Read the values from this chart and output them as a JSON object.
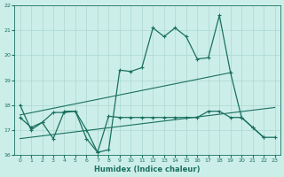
{
  "xlabel": "Humidex (Indice chaleur)",
  "bg_color": "#cceee8",
  "grid_color": "#aad8d0",
  "line_color": "#1a7060",
  "xlim": [
    -0.5,
    23.5
  ],
  "ylim": [
    16,
    22
  ],
  "yticks": [
    16,
    17,
    18,
    19,
    20,
    21,
    22
  ],
  "xticks": [
    0,
    1,
    2,
    3,
    4,
    5,
    6,
    7,
    8,
    9,
    10,
    11,
    12,
    13,
    14,
    15,
    16,
    17,
    18,
    19,
    20,
    21,
    22,
    23
  ],
  "series1_x": [
    0,
    1,
    2,
    3,
    4,
    5,
    6,
    7,
    8,
    9,
    10,
    11,
    12,
    13,
    14,
    15,
    16,
    17,
    18,
    19,
    20,
    21,
    22
  ],
  "series1_y": [
    18.0,
    17.0,
    17.3,
    17.7,
    17.7,
    17.75,
    16.65,
    16.1,
    16.2,
    19.4,
    19.35,
    19.5,
    21.1,
    20.75,
    21.1,
    20.75,
    19.85,
    19.9,
    21.6,
    19.3,
    17.5,
    17.1,
    16.7
  ],
  "series2_x": [
    0,
    1,
    2,
    3,
    4,
    5,
    6,
    7,
    8,
    9,
    10,
    11,
    12,
    13,
    14,
    15,
    16,
    17,
    18,
    19,
    20,
    21,
    22,
    23
  ],
  "series2_y": [
    17.5,
    17.1,
    17.3,
    16.65,
    17.75,
    17.75,
    17.0,
    16.1,
    17.55,
    17.5,
    17.5,
    17.5,
    17.5,
    17.5,
    17.5,
    17.5,
    17.5,
    17.75,
    17.75,
    17.5,
    17.5,
    17.1,
    16.7,
    16.7
  ],
  "trend1_x": [
    0,
    19
  ],
  "trend1_y": [
    17.6,
    19.3
  ],
  "trend2_x": [
    0,
    23
  ],
  "trend2_y": [
    16.65,
    17.9
  ]
}
